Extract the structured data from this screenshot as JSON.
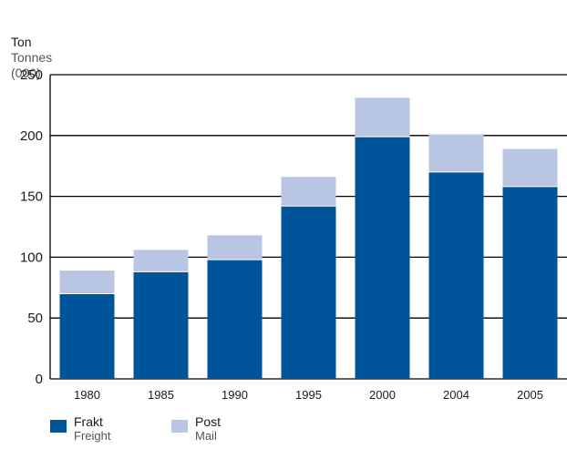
{
  "header": {
    "unit_primary": "Ton",
    "unit_secondary_1": "Tonnes",
    "unit_secondary_2": "(000)"
  },
  "legend": {
    "freight_primary": "Frakt",
    "freight_secondary": "Freight",
    "mail_primary": "Post",
    "mail_secondary": "Mail"
  },
  "colors": {
    "freight": "#00559a",
    "mail": "#b9c6e3",
    "axis": "#000000"
  },
  "chart_data": {
    "type": "bar",
    "stacked": true,
    "categories": [
      "1980",
      "1985",
      "1990",
      "1995",
      "2000",
      "2004",
      "2005"
    ],
    "series": [
      {
        "name": "Frakt / Freight",
        "values": [
          70,
          88,
          98,
          142,
          199,
          170,
          158
        ]
      },
      {
        "name": "Post / Mail",
        "values": [
          19,
          18,
          20,
          24,
          32,
          31,
          31
        ]
      }
    ],
    "yticks": [
      0,
      50,
      100,
      150,
      200,
      250
    ],
    "ylim": [
      0,
      250
    ],
    "ylabel": "Ton / Tonnes (000)",
    "xlabel": "",
    "title": "",
    "grid": true,
    "legend_position": "bottom-left"
  }
}
